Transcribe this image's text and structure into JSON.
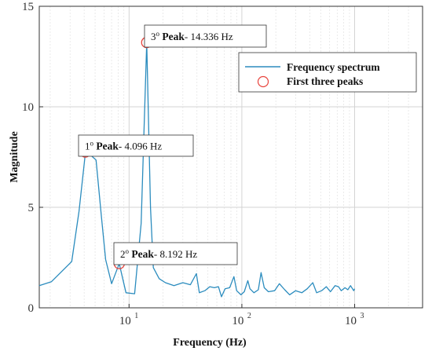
{
  "chart_data": {
    "type": "line",
    "xscale": "log",
    "xlim": [
      1.6,
      4000
    ],
    "ylim": [
      0,
      15
    ],
    "xlabel": "Frequency (Hz)",
    "ylabel": "Magnitude",
    "grid": true,
    "legend_position": "top-right",
    "y_ticks": [
      0,
      5,
      10,
      15
    ],
    "x_ticks": [
      {
        "value": 10,
        "base": "10",
        "exp": "1"
      },
      {
        "value": 100,
        "base": "10",
        "exp": "2"
      },
      {
        "value": 1000,
        "base": "10",
        "exp": "3"
      }
    ],
    "series": [
      {
        "name": "Frequency spectrum",
        "color": "#2b8cbe",
        "points": [
          [
            1.6,
            1.1
          ],
          [
            2.05,
            1.3
          ],
          [
            3.1,
            2.3
          ],
          [
            3.6,
            4.8
          ],
          [
            4.1,
            7.7
          ],
          [
            4.35,
            7.7
          ],
          [
            5.1,
            7.35
          ],
          [
            5.7,
            4.5
          ],
          [
            6.2,
            2.4
          ],
          [
            7.0,
            1.2
          ],
          [
            8.19,
            2.2
          ],
          [
            9.4,
            0.75
          ],
          [
            11.2,
            0.7
          ],
          [
            12.8,
            4.2
          ],
          [
            14.336,
            13.2
          ],
          [
            15.5,
            5.0
          ],
          [
            16.4,
            2.0
          ],
          [
            18.5,
            1.45
          ],
          [
            21,
            1.25
          ],
          [
            25,
            1.1
          ],
          [
            30,
            1.25
          ],
          [
            35,
            1.15
          ],
          [
            39.5,
            1.7
          ],
          [
            42,
            0.75
          ],
          [
            47,
            0.85
          ],
          [
            52,
            1.05
          ],
          [
            57,
            1.0
          ],
          [
            62,
            1.05
          ],
          [
            66,
            0.55
          ],
          [
            71,
            0.95
          ],
          [
            78,
            1.0
          ],
          [
            85,
            1.55
          ],
          [
            90,
            0.85
          ],
          [
            98,
            0.65
          ],
          [
            105,
            0.8
          ],
          [
            113,
            1.35
          ],
          [
            118,
            0.95
          ],
          [
            128,
            0.75
          ],
          [
            140,
            0.9
          ],
          [
            148,
            1.75
          ],
          [
            158,
            1.0
          ],
          [
            172,
            0.8
          ],
          [
            195,
            0.85
          ],
          [
            215,
            1.2
          ],
          [
            240,
            0.9
          ],
          [
            265,
            0.65
          ],
          [
            300,
            0.85
          ],
          [
            340,
            0.75
          ],
          [
            380,
            0.95
          ],
          [
            425,
            1.25
          ],
          [
            460,
            0.75
          ],
          [
            510,
            0.85
          ],
          [
            560,
            1.05
          ],
          [
            610,
            0.8
          ],
          [
            670,
            1.1
          ],
          [
            720,
            1.05
          ],
          [
            760,
            0.85
          ],
          [
            820,
            1.0
          ],
          [
            870,
            0.9
          ],
          [
            920,
            1.1
          ],
          [
            980,
            0.85
          ],
          [
            1000,
            0.95
          ]
        ]
      }
    ],
    "peaks": {
      "name": "First three peaks",
      "color": "#e8433c",
      "points": [
        [
          4.096,
          7.75
        ],
        [
          8.192,
          2.2
        ],
        [
          14.336,
          13.2
        ]
      ]
    },
    "annotations": [
      {
        "id": "peak1",
        "ordinal": "1",
        "sup": "o",
        "label": "Peak",
        "value": "- 4.096 Hz"
      },
      {
        "id": "peak2",
        "ordinal": "2",
        "sup": "o",
        "label": "Peak",
        "value": "- 8.192 Hz"
      },
      {
        "id": "peak3",
        "ordinal": "3",
        "sup": "o",
        "label": "Peak",
        "value": "- 14.336 Hz"
      }
    ]
  }
}
